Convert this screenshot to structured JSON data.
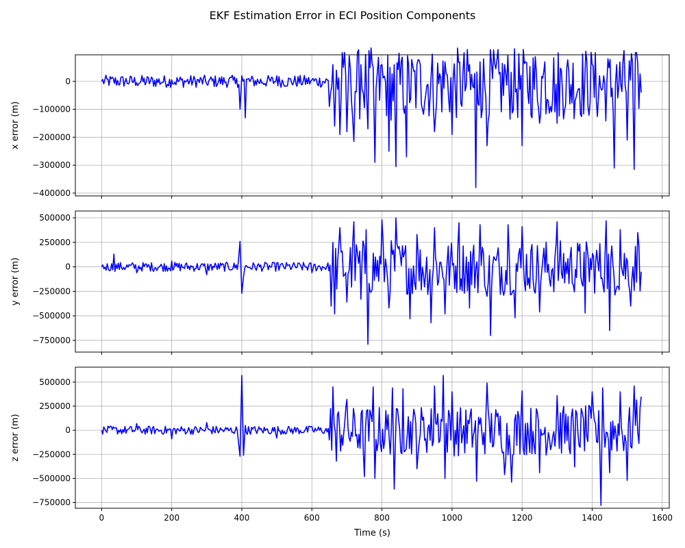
{
  "title": "EKF Estimation Error in ECI Position Components",
  "colors": {
    "line": "#0000ff",
    "grid": "#b0b0b0",
    "axes": "#000000"
  },
  "xaxis": {
    "label": "Time (s)",
    "lim": [
      -75,
      1620
    ],
    "ticks": [
      0,
      200,
      400,
      600,
      800,
      1000,
      1200,
      1400,
      1600
    ]
  },
  "chart_data": [
    {
      "type": "line",
      "ylabel": "x error (m)",
      "ylim": [
        -410000,
        95000
      ],
      "yticks": [
        0,
        -100000,
        -200000,
        -300000,
        -400000
      ],
      "grid": true,
      "series": [
        {
          "x": [
            0,
            100,
            200,
            300,
            385,
            395,
            400,
            410,
            420,
            500,
            600,
            650,
            660,
            665,
            670,
            680,
            690,
            700,
            710,
            720,
            740,
            760,
            775,
            780,
            800,
            820,
            835,
            840,
            855,
            870,
            900,
            950,
            980,
            1000,
            1050,
            1068,
            1080,
            1100,
            1150,
            1200,
            1210,
            1250,
            1265,
            1300,
            1400,
            1463,
            1470,
            1500,
            1515,
            1520,
            1530,
            1540
          ],
          "y": [
            0,
            -5000,
            5000,
            -10000,
            10000,
            -100000,
            20000,
            -130000,
            10000,
            20000,
            5000,
            -90000,
            60000,
            -160000,
            40000,
            -190000,
            50000,
            -180000,
            45000,
            -215000,
            60000,
            -170000,
            50000,
            -290000,
            60000,
            -250000,
            60000,
            -305000,
            70000,
            -270000,
            60000,
            -180000,
            70000,
            -190000,
            60000,
            -380000,
            70000,
            -230000,
            60000,
            -230000,
            70000,
            -150000,
            70000,
            -150000,
            60000,
            -310000,
            60000,
            -210000,
            70000,
            -315000,
            65000,
            -40000
          ]
        }
      ]
    },
    {
      "type": "line",
      "ylabel": "y error (m)",
      "ylim": [
        -870000,
        570000
      ],
      "yticks": [
        500000,
        250000,
        0,
        -250000,
        -500000,
        -750000
      ],
      "grid": true,
      "series": [
        {
          "x": [
            0,
            35,
            100,
            200,
            300,
            390,
            395,
            400,
            405,
            500,
            600,
            655,
            660,
            665,
            680,
            700,
            720,
            740,
            755,
            760,
            800,
            820,
            840,
            880,
            900,
            940,
            950,
            980,
            1020,
            1050,
            1080,
            1100,
            1110,
            1160,
            1180,
            1200,
            1250,
            1300,
            1380,
            1440,
            1450,
            1480,
            1510,
            1530,
            1540
          ],
          "y": [
            0,
            130000,
            -60000,
            60000,
            -80000,
            40000,
            260000,
            -270000,
            -100000,
            40000,
            -60000,
            -400000,
            250000,
            -480000,
            400000,
            -360000,
            460000,
            -330000,
            380000,
            -790000,
            480000,
            -420000,
            500000,
            -530000,
            330000,
            -570000,
            400000,
            -480000,
            450000,
            -420000,
            430000,
            -300000,
            -700000,
            430000,
            -520000,
            410000,
            -460000,
            460000,
            -470000,
            470000,
            -650000,
            380000,
            -400000,
            350000,
            -50000
          ]
        }
      ]
    },
    {
      "type": "line",
      "ylabel": "z error (m)",
      "ylim": [
        -810000,
        655000
      ],
      "yticks": [
        500000,
        250000,
        0,
        -250000,
        -500000,
        -750000
      ],
      "grid": true,
      "series": [
        {
          "x": [
            0,
            100,
            200,
            300,
            390,
            395,
            400,
            405,
            410,
            500,
            600,
            650,
            660,
            670,
            700,
            750,
            775,
            780,
            830,
            835,
            860,
            900,
            950,
            975,
            980,
            1000,
            1070,
            1100,
            1150,
            1170,
            1200,
            1250,
            1300,
            1350,
            1400,
            1425,
            1430,
            1450,
            1480,
            1500,
            1520,
            1540
          ],
          "y": [
            0,
            70000,
            -90000,
            80000,
            -100000,
            -270000,
            570000,
            -260000,
            50000,
            -80000,
            40000,
            -100000,
            450000,
            -320000,
            320000,
            -480000,
            450000,
            -500000,
            440000,
            -610000,
            430000,
            -400000,
            460000,
            570000,
            -500000,
            400000,
            -530000,
            490000,
            -460000,
            -540000,
            410000,
            -440000,
            360000,
            -380000,
            400000,
            -780000,
            440000,
            -440000,
            400000,
            -520000,
            460000,
            350000
          ]
        }
      ]
    }
  ]
}
